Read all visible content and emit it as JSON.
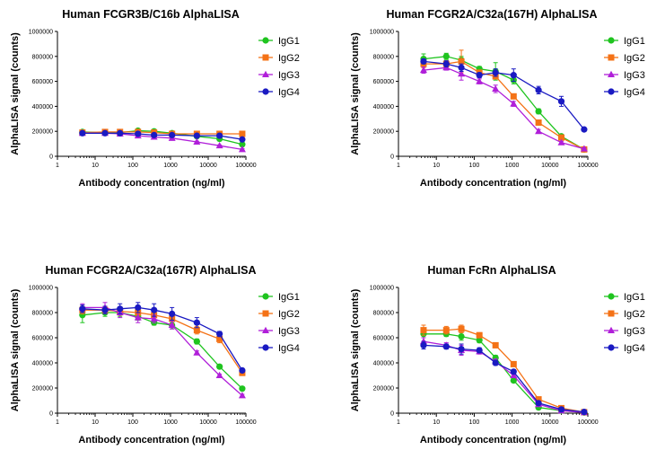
{
  "colors": {
    "IgG1": "#1fc41f",
    "IgG2": "#f47216",
    "IgG3": "#b01fd9",
    "IgG4": "#1a1ac2"
  },
  "chart_data": [
    {
      "type": "line",
      "title": "Human FCGR3B/C16b AlphaLISA",
      "xlabel": "Antibody concentration (ng/ml)",
      "ylabel": "AlphaLISA signal (counts)",
      "xscale": "log",
      "xlim": [
        1,
        100000
      ],
      "ylim": [
        0,
        1000000
      ],
      "x_ticks": [
        "1",
        "10",
        "100",
        "1000",
        "10000",
        "100000"
      ],
      "y_ticks": [
        "0",
        "200000",
        "400000",
        "600000",
        "800000",
        "1000000"
      ],
      "legend": "right",
      "x": [
        4.6,
        18.3,
        45.7,
        137,
        366,
        1097,
        5000,
        20000,
        80000
      ],
      "series": [
        {
          "name": "IgG1",
          "marker": "circle",
          "values": [
            195000,
            190000,
            190000,
            205000,
            200000,
            185000,
            160000,
            140000,
            95000
          ],
          "errors": [
            8000,
            6000,
            10000,
            12000,
            10000,
            8000,
            8000,
            8000,
            10000
          ]
        },
        {
          "name": "IgG2",
          "marker": "square",
          "values": [
            190000,
            195000,
            195000,
            195000,
            190000,
            180000,
            180000,
            180000,
            180000
          ],
          "errors": [
            6000,
            6000,
            8000,
            6000,
            6000,
            6000,
            6000,
            6000,
            6000
          ]
        },
        {
          "name": "IgG3",
          "marker": "triangle",
          "values": [
            185000,
            185000,
            180000,
            165000,
            155000,
            145000,
            115000,
            85000,
            55000
          ],
          "errors": [
            6000,
            6000,
            6000,
            6000,
            6000,
            6000,
            6000,
            6000,
            6000
          ]
        },
        {
          "name": "IgG4",
          "marker": "circle",
          "values": [
            185000,
            185000,
            185000,
            180000,
            170000,
            170000,
            165000,
            165000,
            135000
          ],
          "errors": [
            6000,
            6000,
            6000,
            6000,
            6000,
            6000,
            6000,
            6000,
            6000
          ]
        }
      ]
    },
    {
      "type": "line",
      "title": "Human FCGR2A/C32a(167H) AlphaLISA",
      "xlabel": "Antibody concentration (ng/ml)",
      "ylabel": "AlphaLISA signal (counts)",
      "xscale": "log",
      "xlim": [
        1,
        100000
      ],
      "ylim": [
        0,
        1000000
      ],
      "x_ticks": [
        "1",
        "10",
        "100",
        "1000",
        "10000",
        "100000"
      ],
      "y_ticks": [
        "0",
        "200000",
        "400000",
        "600000",
        "800000",
        "1000000"
      ],
      "legend": "right",
      "x": [
        4.6,
        18.3,
        45.7,
        137,
        366,
        1097,
        5000,
        20000,
        80000
      ],
      "series": [
        {
          "name": "IgG1",
          "marker": "circle",
          "values": [
            780000,
            800000,
            770000,
            700000,
            680000,
            610000,
            360000,
            160000,
            55000
          ],
          "errors": [
            40000,
            25000,
            30000,
            20000,
            70000,
            30000,
            20000,
            15000,
            8000
          ]
        },
        {
          "name": "IgG2",
          "marker": "square",
          "values": [
            740000,
            740000,
            760000,
            670000,
            640000,
            480000,
            270000,
            150000,
            55000
          ],
          "errors": [
            30000,
            25000,
            90000,
            20000,
            20000,
            20000,
            15000,
            10000,
            8000
          ]
        },
        {
          "name": "IgG3",
          "marker": "triangle",
          "values": [
            690000,
            710000,
            660000,
            600000,
            540000,
            420000,
            200000,
            110000,
            60000
          ],
          "errors": [
            25000,
            20000,
            50000,
            20000,
            30000,
            20000,
            15000,
            10000,
            8000
          ]
        },
        {
          "name": "IgG4",
          "marker": "circle",
          "values": [
            760000,
            740000,
            710000,
            650000,
            670000,
            650000,
            530000,
            440000,
            215000
          ],
          "errors": [
            20000,
            25000,
            30000,
            20000,
            30000,
            50000,
            30000,
            40000,
            10000
          ]
        }
      ]
    },
    {
      "type": "line",
      "title": "Human FCGR2A/C32a(167R) AlphaLISA",
      "xlabel": "Antibody concentration (ng/ml)",
      "ylabel": "AlphaLISA signal (counts)",
      "xscale": "log",
      "xlim": [
        1,
        100000
      ],
      "ylim": [
        0,
        1000000
      ],
      "x_ticks": [
        "1",
        "10",
        "100",
        "1000",
        "10000",
        "100000"
      ],
      "y_ticks": [
        "0",
        "200000",
        "400000",
        "600000",
        "800000",
        "1000000"
      ],
      "legend": "right",
      "x": [
        4.6,
        18.3,
        45.7,
        137,
        366,
        1097,
        5000,
        20000,
        80000
      ],
      "series": [
        {
          "name": "IgG1",
          "marker": "circle",
          "values": [
            780000,
            800000,
            800000,
            770000,
            720000,
            700000,
            570000,
            370000,
            195000
          ],
          "errors": [
            60000,
            30000,
            30000,
            30000,
            20000,
            30000,
            20000,
            10000,
            10000
          ]
        },
        {
          "name": "IgG2",
          "marker": "square",
          "values": [
            820000,
            820000,
            810000,
            800000,
            780000,
            750000,
            660000,
            590000,
            320000
          ],
          "errors": [
            30000,
            30000,
            30000,
            40000,
            40000,
            40000,
            30000,
            30000,
            15000
          ]
        },
        {
          "name": "IgG3",
          "marker": "triangle",
          "values": [
            840000,
            840000,
            800000,
            760000,
            750000,
            700000,
            480000,
            300000,
            140000
          ],
          "errors": [
            30000,
            40000,
            40000,
            40000,
            30000,
            30000,
            15000,
            10000,
            10000
          ]
        },
        {
          "name": "IgG4",
          "marker": "circle",
          "values": [
            830000,
            820000,
            830000,
            840000,
            820000,
            790000,
            720000,
            630000,
            340000
          ],
          "errors": [
            30000,
            30000,
            40000,
            40000,
            50000,
            50000,
            40000,
            20000,
            15000
          ]
        }
      ]
    },
    {
      "type": "line",
      "title": "Human FcRn AlphaLISA",
      "xlabel": "Antibody concentration (ng/ml)",
      "ylabel": "AlphaLISA signal (counts)",
      "xscale": "log",
      "xlim": [
        1,
        100000
      ],
      "ylim": [
        0,
        1000000
      ],
      "x_ticks": [
        "1",
        "10",
        "100",
        "1000",
        "10000",
        "100000"
      ],
      "y_ticks": [
        "0",
        "200000",
        "400000",
        "600000",
        "800000",
        "1000000"
      ],
      "legend": "right",
      "x": [
        4.6,
        18.3,
        45.7,
        137,
        366,
        1097,
        5000,
        20000,
        80000
      ],
      "series": [
        {
          "name": "IgG1",
          "marker": "circle",
          "values": [
            630000,
            630000,
            610000,
            580000,
            440000,
            260000,
            45000,
            20000,
            5000
          ],
          "errors": [
            30000,
            20000,
            30000,
            20000,
            20000,
            15000,
            8000,
            5000,
            3000
          ]
        },
        {
          "name": "IgG2",
          "marker": "square",
          "values": [
            660000,
            660000,
            670000,
            620000,
            540000,
            390000,
            110000,
            40000,
            8000
          ],
          "errors": [
            40000,
            30000,
            30000,
            20000,
            20000,
            20000,
            10000,
            8000,
            4000
          ]
        },
        {
          "name": "IgG3",
          "marker": "triangle",
          "values": [
            570000,
            540000,
            500000,
            490000,
            410000,
            300000,
            70000,
            20000,
            5000
          ],
          "errors": [
            30000,
            20000,
            40000,
            20000,
            20000,
            15000,
            8000,
            5000,
            3000
          ]
        },
        {
          "name": "IgG4",
          "marker": "circle",
          "values": [
            540000,
            530000,
            510000,
            500000,
            400000,
            330000,
            80000,
            30000,
            10000
          ],
          "errors": [
            30000,
            20000,
            40000,
            20000,
            20000,
            15000,
            8000,
            5000,
            3000
          ]
        }
      ]
    }
  ]
}
